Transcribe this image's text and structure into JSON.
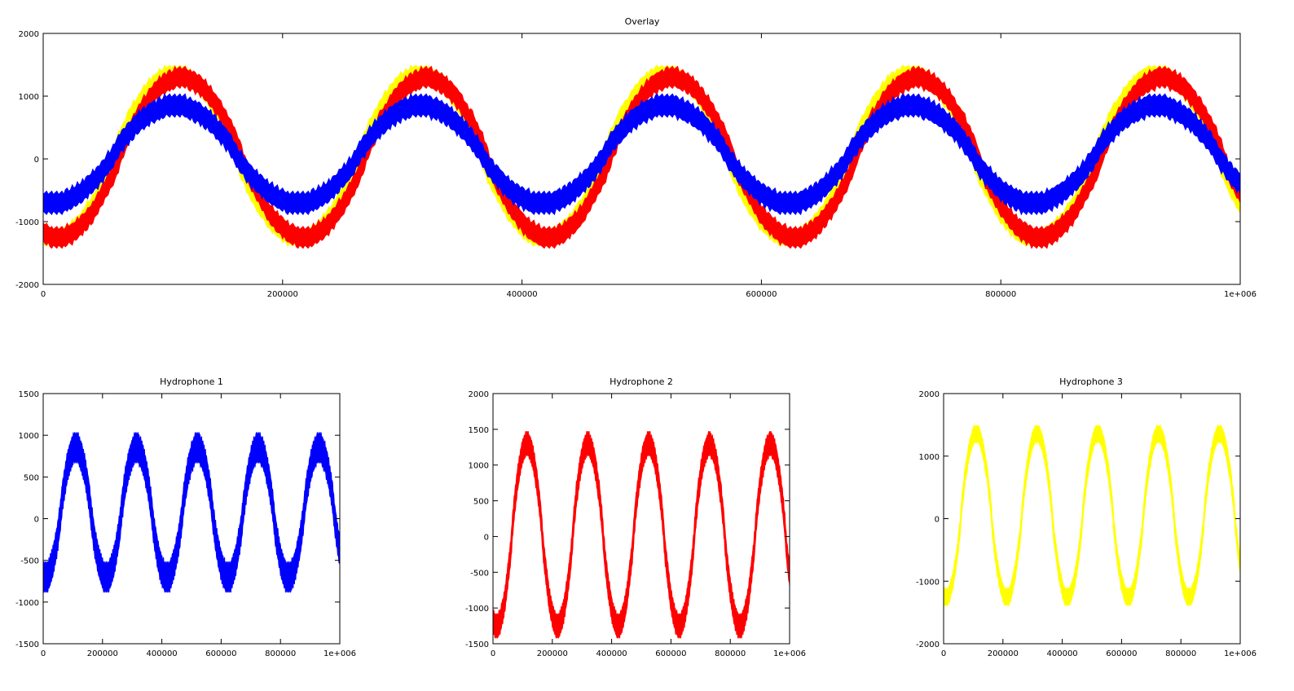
{
  "chart_data": [
    {
      "type": "line",
      "title": "Overlay",
      "xlabel": "",
      "ylabel": "",
      "xlim": [
        0,
        1000000
      ],
      "ylim": [
        -2000,
        2000
      ],
      "xticks": [
        0,
        200000,
        400000,
        600000,
        800000,
        1000000
      ],
      "xtick_labels": [
        "0",
        "200000",
        "400000",
        "600000",
        "800000",
        "1e+006"
      ],
      "yticks": [
        -2000,
        -1000,
        0,
        1000,
        2000
      ],
      "ytick_labels": [
        "-2000",
        "-1000",
        "0",
        "1000",
        "2000"
      ],
      "grid": false,
      "legend": "none",
      "series": [
        {
          "color": "#ffff00",
          "period": 205000,
          "peak_x": 110000,
          "center": 50,
          "amplitude": 1320,
          "band": 240
        },
        {
          "color": "#ff0000",
          "period": 205000,
          "peak_x": 115000,
          "center": 20,
          "amplitude": 1270,
          "band": 300
        },
        {
          "color": "#0000ff",
          "period": 205000,
          "peak_x": 110000,
          "center": 70,
          "amplitude": 780,
          "band": 320
        }
      ]
    },
    {
      "type": "line",
      "title": "Hydrophone 1",
      "xlabel": "",
      "ylabel": "",
      "xlim": [
        0,
        1000000
      ],
      "ylim": [
        -1500,
        1500
      ],
      "xticks": [
        0,
        200000,
        400000,
        600000,
        800000,
        1000000
      ],
      "xtick_labels": [
        "0",
        "200000",
        "400000",
        "600000",
        "800000",
        "1e+006"
      ],
      "yticks": [
        -1500,
        -1000,
        -500,
        0,
        500,
        1000,
        1500
      ],
      "ytick_labels": [
        "-1500",
        "-1000",
        "-500",
        "0",
        "500",
        "1000",
        "1500"
      ],
      "grid": false,
      "legend": "none",
      "series": [
        {
          "color": "#0000ff",
          "period": 205000,
          "peak_x": 110000,
          "center": 70,
          "amplitude": 780,
          "band": 320
        }
      ]
    },
    {
      "type": "line",
      "title": "Hydrophone 2",
      "xlabel": "",
      "ylabel": "",
      "xlim": [
        0,
        1000000
      ],
      "ylim": [
        -1500,
        2000
      ],
      "xticks": [
        0,
        200000,
        400000,
        600000,
        800000,
        1000000
      ],
      "xtick_labels": [
        "0",
        "200000",
        "400000",
        "600000",
        "800000",
        "1e+006"
      ],
      "yticks": [
        -1500,
        -1000,
        -500,
        0,
        500,
        1000,
        1500,
        2000
      ],
      "ytick_labels": [
        "-1500",
        "-1000",
        "-500",
        "0",
        "500",
        "1000",
        "1500",
        "2000"
      ],
      "grid": false,
      "legend": "none",
      "series": [
        {
          "color": "#ff0000",
          "period": 205000,
          "peak_x": 115000,
          "center": 20,
          "amplitude": 1270,
          "band": 300
        }
      ]
    },
    {
      "type": "line",
      "title": "Hydrophone 3",
      "xlabel": "",
      "ylabel": "",
      "xlim": [
        0,
        1000000
      ],
      "ylim": [
        -2000,
        2000
      ],
      "xticks": [
        0,
        200000,
        400000,
        600000,
        800000,
        1000000
      ],
      "xtick_labels": [
        "0",
        "200000",
        "400000",
        "600000",
        "800000",
        "1e+006"
      ],
      "yticks": [
        -2000,
        -1000,
        0,
        1000,
        2000
      ],
      "ytick_labels": [
        "-2000",
        "-1000",
        "0",
        "1000",
        "2000"
      ],
      "grid": false,
      "legend": "none",
      "series": [
        {
          "color": "#ffff00",
          "period": 205000,
          "peak_x": 110000,
          "center": 50,
          "amplitude": 1320,
          "band": 240
        }
      ]
    }
  ]
}
